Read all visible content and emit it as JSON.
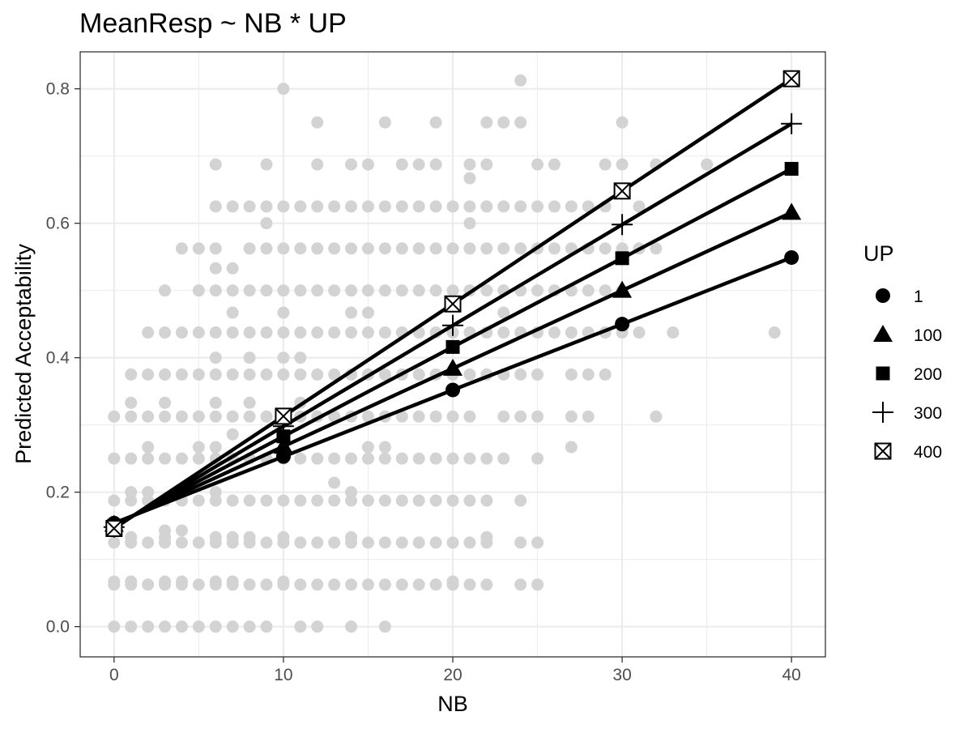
{
  "chart_data": {
    "type": "line",
    "title": "MeanResp ~ NB * UP",
    "xlabel": "NB",
    "ylabel": "Predicted Acceptability",
    "xlim": [
      -2,
      42
    ],
    "ylim": [
      -0.045,
      0.855
    ],
    "xticks": [
      0,
      10,
      20,
      30,
      40
    ],
    "xtick_labels": [
      "0",
      "10",
      "20",
      "30",
      "40"
    ],
    "yticks": [
      0.0,
      0.2,
      0.4,
      0.6,
      0.8
    ],
    "ytick_labels": [
      "0.0",
      "0.2",
      "0.4",
      "0.6",
      "0.8"
    ],
    "grid": true,
    "legend_position": "right",
    "legend_title": "UP",
    "colors": {
      "line": "#000000",
      "observed": "#d3d3d3",
      "panel_border": "#333333",
      "grid": "#ebebeb"
    },
    "x": [
      0,
      10,
      20,
      30,
      40
    ],
    "series": [
      {
        "name": "1",
        "shape": "circle",
        "values": [
          0.154,
          0.253,
          0.352,
          0.45,
          0.549
        ]
      },
      {
        "name": "100",
        "shape": "triangle",
        "values": [
          0.152,
          0.268,
          0.384,
          0.5,
          0.616
        ]
      },
      {
        "name": "200",
        "shape": "square",
        "values": [
          0.15,
          0.283,
          0.416,
          0.548,
          0.681
        ]
      },
      {
        "name": "300",
        "shape": "plus",
        "values": [
          0.148,
          0.298,
          0.448,
          0.598,
          0.748
        ]
      },
      {
        "name": "400",
        "shape": "boxx",
        "values": [
          0.146,
          0.313,
          0.48,
          0.648,
          0.815
        ]
      }
    ],
    "observed_points": [
      [
        0,
        0
      ],
      [
        1,
        0
      ],
      [
        2,
        0
      ],
      [
        3,
        0
      ],
      [
        4,
        0
      ],
      [
        5,
        0
      ],
      [
        6,
        0
      ],
      [
        7,
        0
      ],
      [
        8,
        0
      ],
      [
        9,
        0
      ],
      [
        11,
        0
      ],
      [
        12,
        0
      ],
      [
        14,
        0
      ],
      [
        16,
        0
      ],
      [
        0,
        0.0625
      ],
      [
        1,
        0.0625
      ],
      [
        2,
        0.0625
      ],
      [
        3,
        0.0625
      ],
      [
        4,
        0.0625
      ],
      [
        5,
        0.0625
      ],
      [
        6,
        0.0625
      ],
      [
        7,
        0.0625
      ],
      [
        8,
        0.0625
      ],
      [
        9,
        0.0625
      ],
      [
        10,
        0.0625
      ],
      [
        11,
        0.0625
      ],
      [
        12,
        0.0625
      ],
      [
        13,
        0.0625
      ],
      [
        14,
        0.0625
      ],
      [
        15,
        0.0625
      ],
      [
        16,
        0.0625
      ],
      [
        17,
        0.0625
      ],
      [
        18,
        0.0625
      ],
      [
        19,
        0.0625
      ],
      [
        20,
        0.0625
      ],
      [
        21,
        0.0625
      ],
      [
        22,
        0.0625
      ],
      [
        24,
        0.0625
      ],
      [
        25,
        0.0625
      ],
      [
        0,
        0.067
      ],
      [
        1,
        0.067
      ],
      [
        3,
        0.067
      ],
      [
        4,
        0.067
      ],
      [
        6,
        0.067
      ],
      [
        7,
        0.067
      ],
      [
        10,
        0.067
      ],
      [
        20,
        0.067
      ],
      [
        0,
        0.125
      ],
      [
        1,
        0.125
      ],
      [
        2,
        0.125
      ],
      [
        3,
        0.125
      ],
      [
        4,
        0.125
      ],
      [
        5,
        0.125
      ],
      [
        6,
        0.125
      ],
      [
        7,
        0.125
      ],
      [
        8,
        0.125
      ],
      [
        9,
        0.125
      ],
      [
        10,
        0.125
      ],
      [
        11,
        0.125
      ],
      [
        12,
        0.125
      ],
      [
        13,
        0.125
      ],
      [
        14,
        0.125
      ],
      [
        15,
        0.125
      ],
      [
        16,
        0.125
      ],
      [
        17,
        0.125
      ],
      [
        18,
        0.125
      ],
      [
        19,
        0.125
      ],
      [
        20,
        0.125
      ],
      [
        21,
        0.125
      ],
      [
        22,
        0.125
      ],
      [
        24,
        0.125
      ],
      [
        25,
        0.125
      ],
      [
        1,
        0.133
      ],
      [
        3,
        0.133
      ],
      [
        6,
        0.133
      ],
      [
        7,
        0.133
      ],
      [
        8,
        0.133
      ],
      [
        10,
        0.133
      ],
      [
        14,
        0.133
      ],
      [
        22,
        0.133
      ],
      [
        3,
        0.143
      ],
      [
        4,
        0.143
      ],
      [
        0,
        0.1875
      ],
      [
        1,
        0.1875
      ],
      [
        2,
        0.1875
      ],
      [
        3,
        0.1875
      ],
      [
        4,
        0.1875
      ],
      [
        5,
        0.1875
      ],
      [
        6,
        0.1875
      ],
      [
        7,
        0.1875
      ],
      [
        8,
        0.1875
      ],
      [
        9,
        0.1875
      ],
      [
        10,
        0.1875
      ],
      [
        11,
        0.1875
      ],
      [
        12,
        0.1875
      ],
      [
        13,
        0.1875
      ],
      [
        14,
        0.1875
      ],
      [
        15,
        0.1875
      ],
      [
        16,
        0.1875
      ],
      [
        17,
        0.1875
      ],
      [
        18,
        0.1875
      ],
      [
        19,
        0.1875
      ],
      [
        20,
        0.1875
      ],
      [
        21,
        0.1875
      ],
      [
        22,
        0.1875
      ],
      [
        24,
        0.1875
      ],
      [
        1,
        0.2
      ],
      [
        2,
        0.2
      ],
      [
        6,
        0.2
      ],
      [
        14,
        0.2
      ],
      [
        13,
        0.214
      ],
      [
        0,
        0.25
      ],
      [
        1,
        0.25
      ],
      [
        2,
        0.25
      ],
      [
        3,
        0.25
      ],
      [
        4,
        0.25
      ],
      [
        5,
        0.25
      ],
      [
        6,
        0.25
      ],
      [
        7,
        0.25
      ],
      [
        8,
        0.25
      ],
      [
        9,
        0.25
      ],
      [
        10,
        0.25
      ],
      [
        11,
        0.25
      ],
      [
        12,
        0.25
      ],
      [
        13,
        0.25
      ],
      [
        14,
        0.25
      ],
      [
        15,
        0.25
      ],
      [
        16,
        0.25
      ],
      [
        17,
        0.25
      ],
      [
        18,
        0.25
      ],
      [
        19,
        0.25
      ],
      [
        20,
        0.25
      ],
      [
        21,
        0.25
      ],
      [
        22,
        0.25
      ],
      [
        23,
        0.25
      ],
      [
        25,
        0.25
      ],
      [
        2,
        0.267
      ],
      [
        5,
        0.267
      ],
      [
        6,
        0.267
      ],
      [
        15,
        0.267
      ],
      [
        16,
        0.267
      ],
      [
        27,
        0.267
      ],
      [
        7,
        0.286
      ],
      [
        0,
        0.3125
      ],
      [
        1,
        0.3125
      ],
      [
        2,
        0.3125
      ],
      [
        3,
        0.3125
      ],
      [
        4,
        0.3125
      ],
      [
        5,
        0.3125
      ],
      [
        6,
        0.3125
      ],
      [
        7,
        0.3125
      ],
      [
        8,
        0.3125
      ],
      [
        9,
        0.3125
      ],
      [
        10,
        0.3125
      ],
      [
        11,
        0.3125
      ],
      [
        12,
        0.3125
      ],
      [
        13,
        0.3125
      ],
      [
        14,
        0.3125
      ],
      [
        15,
        0.3125
      ],
      [
        16,
        0.3125
      ],
      [
        17,
        0.3125
      ],
      [
        18,
        0.3125
      ],
      [
        19,
        0.3125
      ],
      [
        20,
        0.3125
      ],
      [
        21,
        0.3125
      ],
      [
        23,
        0.3125
      ],
      [
        24,
        0.3125
      ],
      [
        25,
        0.3125
      ],
      [
        27,
        0.3125
      ],
      [
        28,
        0.3125
      ],
      [
        32,
        0.3125
      ],
      [
        1,
        0.333
      ],
      [
        3,
        0.333
      ],
      [
        6,
        0.333
      ],
      [
        8,
        0.333
      ],
      [
        11,
        0.333
      ],
      [
        1,
        0.375
      ],
      [
        2,
        0.375
      ],
      [
        3,
        0.375
      ],
      [
        4,
        0.375
      ],
      [
        5,
        0.375
      ],
      [
        6,
        0.375
      ],
      [
        7,
        0.375
      ],
      [
        8,
        0.375
      ],
      [
        9,
        0.375
      ],
      [
        10,
        0.375
      ],
      [
        11,
        0.375
      ],
      [
        12,
        0.375
      ],
      [
        13,
        0.375
      ],
      [
        14,
        0.375
      ],
      [
        15,
        0.375
      ],
      [
        16,
        0.375
      ],
      [
        17,
        0.375
      ],
      [
        18,
        0.375
      ],
      [
        19,
        0.375
      ],
      [
        20,
        0.375
      ],
      [
        21,
        0.375
      ],
      [
        22,
        0.375
      ],
      [
        23,
        0.375
      ],
      [
        24,
        0.375
      ],
      [
        25,
        0.375
      ],
      [
        27,
        0.375
      ],
      [
        28,
        0.375
      ],
      [
        29,
        0.375
      ],
      [
        6,
        0.4
      ],
      [
        8,
        0.4
      ],
      [
        10,
        0.4
      ],
      [
        11,
        0.4
      ],
      [
        2,
        0.4375
      ],
      [
        3,
        0.4375
      ],
      [
        4,
        0.4375
      ],
      [
        5,
        0.4375
      ],
      [
        6,
        0.4375
      ],
      [
        7,
        0.4375
      ],
      [
        8,
        0.4375
      ],
      [
        9,
        0.4375
      ],
      [
        10,
        0.4375
      ],
      [
        11,
        0.4375
      ],
      [
        12,
        0.4375
      ],
      [
        13,
        0.4375
      ],
      [
        14,
        0.4375
      ],
      [
        15,
        0.4375
      ],
      [
        16,
        0.4375
      ],
      [
        17,
        0.4375
      ],
      [
        18,
        0.4375
      ],
      [
        19,
        0.4375
      ],
      [
        20,
        0.4375
      ],
      [
        21,
        0.4375
      ],
      [
        22,
        0.4375
      ],
      [
        23,
        0.4375
      ],
      [
        24,
        0.4375
      ],
      [
        25,
        0.4375
      ],
      [
        26,
        0.4375
      ],
      [
        27,
        0.4375
      ],
      [
        28,
        0.4375
      ],
      [
        29,
        0.4375
      ],
      [
        30,
        0.4375
      ],
      [
        31,
        0.4375
      ],
      [
        33,
        0.4375
      ],
      [
        39,
        0.4375
      ],
      [
        7,
        0.467
      ],
      [
        10,
        0.467
      ],
      [
        14,
        0.467
      ],
      [
        15,
        0.467
      ],
      [
        23,
        0.467
      ],
      [
        3,
        0.5
      ],
      [
        5,
        0.5
      ],
      [
        6,
        0.5
      ],
      [
        7,
        0.5
      ],
      [
        8,
        0.5
      ],
      [
        9,
        0.5
      ],
      [
        10,
        0.5
      ],
      [
        11,
        0.5
      ],
      [
        12,
        0.5
      ],
      [
        13,
        0.5
      ],
      [
        14,
        0.5
      ],
      [
        15,
        0.5
      ],
      [
        16,
        0.5
      ],
      [
        17,
        0.5
      ],
      [
        18,
        0.5
      ],
      [
        19,
        0.5
      ],
      [
        20,
        0.5
      ],
      [
        21,
        0.5
      ],
      [
        22,
        0.5
      ],
      [
        23,
        0.5
      ],
      [
        24,
        0.5
      ],
      [
        25,
        0.5
      ],
      [
        26,
        0.5
      ],
      [
        27,
        0.5
      ],
      [
        28,
        0.5
      ],
      [
        29,
        0.5
      ],
      [
        30,
        0.5
      ],
      [
        6,
        0.533
      ],
      [
        7,
        0.533
      ],
      [
        4,
        0.5625
      ],
      [
        5,
        0.5625
      ],
      [
        6,
        0.5625
      ],
      [
        8,
        0.5625
      ],
      [
        9,
        0.5625
      ],
      [
        10,
        0.5625
      ],
      [
        11,
        0.5625
      ],
      [
        12,
        0.5625
      ],
      [
        13,
        0.5625
      ],
      [
        14,
        0.5625
      ],
      [
        15,
        0.5625
      ],
      [
        16,
        0.5625
      ],
      [
        17,
        0.5625
      ],
      [
        18,
        0.5625
      ],
      [
        19,
        0.5625
      ],
      [
        20,
        0.5625
      ],
      [
        21,
        0.5625
      ],
      [
        22,
        0.5625
      ],
      [
        23,
        0.5625
      ],
      [
        24,
        0.5625
      ],
      [
        25,
        0.5625
      ],
      [
        26,
        0.5625
      ],
      [
        27,
        0.5625
      ],
      [
        28,
        0.5625
      ],
      [
        29,
        0.5625
      ],
      [
        30,
        0.5625
      ],
      [
        31,
        0.5625
      ],
      [
        32,
        0.5625
      ],
      [
        9,
        0.6
      ],
      [
        21,
        0.6
      ],
      [
        6,
        0.625
      ],
      [
        7,
        0.625
      ],
      [
        8,
        0.625
      ],
      [
        9,
        0.625
      ],
      [
        10,
        0.625
      ],
      [
        11,
        0.625
      ],
      [
        12,
        0.625
      ],
      [
        13,
        0.625
      ],
      [
        14,
        0.625
      ],
      [
        15,
        0.625
      ],
      [
        16,
        0.625
      ],
      [
        17,
        0.625
      ],
      [
        18,
        0.625
      ],
      [
        19,
        0.625
      ],
      [
        20,
        0.625
      ],
      [
        21,
        0.625
      ],
      [
        22,
        0.625
      ],
      [
        23,
        0.625
      ],
      [
        24,
        0.625
      ],
      [
        25,
        0.625
      ],
      [
        26,
        0.625
      ],
      [
        27,
        0.625
      ],
      [
        28,
        0.625
      ],
      [
        29,
        0.625
      ],
      [
        31,
        0.625
      ],
      [
        21,
        0.667
      ],
      [
        6,
        0.6875
      ],
      [
        9,
        0.6875
      ],
      [
        12,
        0.6875
      ],
      [
        14,
        0.6875
      ],
      [
        15,
        0.6875
      ],
      [
        17,
        0.6875
      ],
      [
        18,
        0.6875
      ],
      [
        19,
        0.6875
      ],
      [
        21,
        0.6875
      ],
      [
        22,
        0.6875
      ],
      [
        25,
        0.6875
      ],
      [
        26,
        0.6875
      ],
      [
        29,
        0.6875
      ],
      [
        30,
        0.6875
      ],
      [
        32,
        0.6875
      ],
      [
        35,
        0.6875
      ],
      [
        12,
        0.75
      ],
      [
        16,
        0.75
      ],
      [
        19,
        0.75
      ],
      [
        22,
        0.75
      ],
      [
        23,
        0.75
      ],
      [
        24,
        0.75
      ],
      [
        30,
        0.75
      ],
      [
        10,
        0.8
      ],
      [
        24,
        0.8125
      ]
    ]
  }
}
